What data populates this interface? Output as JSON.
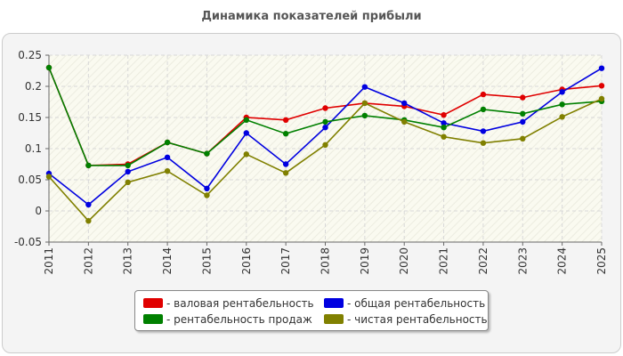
{
  "chart_data": {
    "type": "line",
    "title": "Динамика показателей прибыли",
    "xlabel": "",
    "ylabel": "",
    "x": [
      "2011",
      "2012",
      "2013",
      "2014",
      "2015",
      "2016",
      "2017",
      "2018",
      "2019",
      "2020",
      "2021",
      "2022",
      "2023",
      "2024",
      "2025"
    ],
    "ylim": [
      -0.05,
      0.25
    ],
    "yticks": [
      "0.25",
      "0.2",
      "0.15",
      "0.1",
      "0.05",
      "0",
      "-0.05"
    ],
    "grid": true,
    "legend_position": "bottom",
    "series": [
      {
        "name": "- валовая рентабельность",
        "color": "#e00000",
        "values": [
          0.23,
          0.073,
          0.075,
          0.11,
          0.092,
          0.15,
          0.146,
          0.165,
          0.173,
          0.168,
          0.154,
          0.187,
          0.182,
          0.195,
          0.201
        ]
      },
      {
        "name": "- общая рентабельность",
        "color": "#0000e0",
        "values": [
          0.06,
          0.01,
          0.063,
          0.086,
          0.036,
          0.125,
          0.075,
          0.134,
          0.199,
          0.173,
          0.141,
          0.128,
          0.143,
          0.191,
          0.229
        ]
      },
      {
        "name": "- рентабельность продаж",
        "color": "#008000",
        "values": [
          0.23,
          0.073,
          0.073,
          0.11,
          0.092,
          0.146,
          0.124,
          0.143,
          0.153,
          0.146,
          0.134,
          0.163,
          0.156,
          0.171,
          0.176
        ]
      },
      {
        "name": "- чистая рентабельность",
        "color": "#808000",
        "values": [
          0.055,
          -0.016,
          0.046,
          0.064,
          0.025,
          0.091,
          0.061,
          0.106,
          0.173,
          0.143,
          0.119,
          0.109,
          0.116,
          0.151,
          0.18
        ]
      }
    ]
  }
}
